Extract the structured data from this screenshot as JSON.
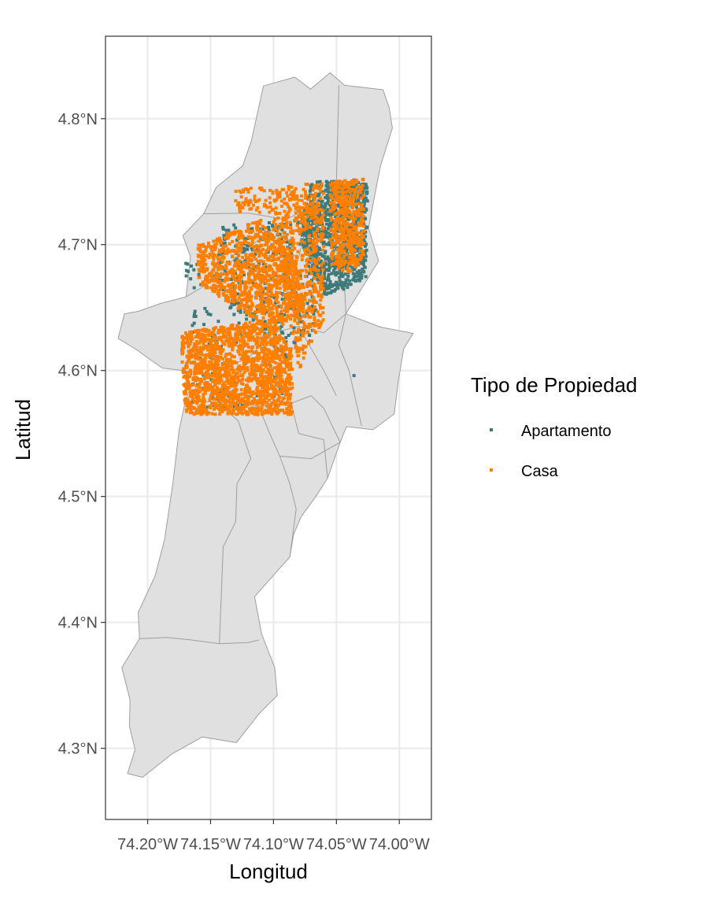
{
  "chart_data": {
    "type": "scatter",
    "title": "",
    "xlabel": "Longitud",
    "ylabel": "Latitud",
    "xlim": [
      -74.2335,
      -73.9745
    ],
    "ylim": [
      4.2435,
      4.8655
    ],
    "x_ticks": [
      {
        "value": -74.2,
        "label": "74.20°W"
      },
      {
        "value": -74.15,
        "label": "74.15°W"
      },
      {
        "value": -74.1,
        "label": "74.10°W"
      },
      {
        "value": -74.05,
        "label": "74.05°W"
      },
      {
        "value": -74.0,
        "label": "74.00°W"
      }
    ],
    "y_ticks": [
      {
        "value": 4.3,
        "label": "4.3°N"
      },
      {
        "value": 4.4,
        "label": "4.4°N"
      },
      {
        "value": 4.5,
        "label": "4.5°N"
      },
      {
        "value": 4.6,
        "label": "4.6°N"
      },
      {
        "value": 4.7,
        "label": "4.7°N"
      },
      {
        "value": 4.8,
        "label": "4.8°N"
      }
    ],
    "grid": true,
    "legend": {
      "title": "Tipo de Propiedad",
      "placement": "right",
      "entries": [
        {
          "name": "Apartamento",
          "color": "#3f7a7a"
        },
        {
          "name": "Casa",
          "color": "#ff7f00"
        }
      ]
    },
    "colors": {
      "land_fill": "#e0e0e0",
      "land_border": "#9e9e9e",
      "grid": "#ebebeb",
      "panel_border": "#333333"
    },
    "boundary": [
      [
        -74.1455,
        4.7455
      ],
      [
        -74.1245,
        4.7625
      ],
      [
        -74.1175,
        4.7825
      ],
      [
        -74.108,
        4.826
      ],
      [
        -74.083,
        4.833
      ],
      [
        -74.0705,
        4.8235
      ],
      [
        -74.055,
        4.8365
      ],
      [
        -74.0435,
        4.8265
      ],
      [
        -74.013,
        4.823
      ],
      [
        -74.008,
        4.8085
      ],
      [
        -74.0055,
        4.7925
      ],
      [
        -74.015,
        4.7625
      ],
      [
        -74.0195,
        4.7395
      ],
      [
        -74.0245,
        4.713
      ],
      [
        -74.0165,
        4.687
      ],
      [
        -74.0285,
        4.6675
      ],
      [
        -74.0425,
        4.645
      ],
      [
        -74.015,
        4.6345
      ],
      [
        -73.989,
        4.6295
      ],
      [
        -73.9965,
        4.6175
      ],
      [
        -74.001,
        4.59
      ],
      [
        -74.004,
        4.5655
      ],
      [
        -74.021,
        4.553
      ],
      [
        -74.042,
        4.5555
      ],
      [
        -74.047,
        4.543
      ],
      [
        -74.057,
        4.5145
      ],
      [
        -74.067,
        4.499
      ],
      [
        -74.078,
        4.484
      ],
      [
        -74.084,
        4.47
      ],
      [
        -74.087,
        4.452
      ],
      [
        -74.0995,
        4.438
      ],
      [
        -74.115,
        4.4205
      ],
      [
        -74.1095,
        4.391
      ],
      [
        -74.099,
        4.364
      ],
      [
        -74.097,
        4.342
      ],
      [
        -74.111,
        4.328
      ],
      [
        -74.1295,
        4.3045
      ],
      [
        -74.1565,
        4.309
      ],
      [
        -74.18,
        4.296
      ],
      [
        -74.204,
        4.277
      ],
      [
        -74.216,
        4.28
      ],
      [
        -74.21,
        4.299
      ],
      [
        -74.2145,
        4.3175
      ],
      [
        -74.214,
        4.3385
      ],
      [
        -74.2205,
        4.364
      ],
      [
        -74.2065,
        4.387
      ],
      [
        -74.2075,
        4.408
      ],
      [
        -74.194,
        4.437
      ],
      [
        -74.1865,
        4.466
      ],
      [
        -74.18,
        4.51
      ],
      [
        -74.175,
        4.5525
      ],
      [
        -74.17,
        4.576
      ],
      [
        -74.165,
        4.5895
      ],
      [
        -74.151,
        4.5975
      ],
      [
        -74.1885,
        4.602
      ],
      [
        -74.2095,
        4.617
      ],
      [
        -74.2235,
        4.6255
      ],
      [
        -74.2185,
        4.645
      ],
      [
        -74.2075,
        4.647
      ],
      [
        -74.189,
        4.6535
      ],
      [
        -74.1695,
        4.6585
      ],
      [
        -74.166,
        4.6905
      ],
      [
        -74.172,
        4.707
      ],
      [
        -74.1555,
        4.7245
      ],
      [
        -74.1455,
        4.7455
      ]
    ],
    "internal_lines": [
      [
        [
          -74.2065,
          4.387
        ],
        [
          -74.185,
          4.388
        ],
        [
          -74.165,
          4.386
        ],
        [
          -74.143,
          4.383
        ],
        [
          -74.12,
          4.384
        ],
        [
          -74.1115,
          4.386
        ]
      ],
      [
        [
          -74.172,
          4.576
        ],
        [
          -74.145,
          4.575
        ],
        [
          -74.128,
          4.56
        ],
        [
          -74.118,
          4.53
        ],
        [
          -74.129,
          4.51
        ],
        [
          -74.13,
          4.48
        ],
        [
          -74.14,
          4.46
        ],
        [
          -74.143,
          4.383
        ]
      ],
      [
        [
          -74.145,
          4.575
        ],
        [
          -74.112,
          4.572
        ],
        [
          -74.103,
          4.55
        ],
        [
          -74.095,
          4.532
        ],
        [
          -74.087,
          4.51
        ],
        [
          -74.082,
          4.49
        ],
        [
          -74.087,
          4.452
        ]
      ],
      [
        [
          -74.112,
          4.572
        ],
        [
          -74.086,
          4.574
        ],
        [
          -74.07,
          4.58
        ],
        [
          -74.06,
          4.57
        ],
        [
          -74.047,
          4.543
        ]
      ],
      [
        [
          -74.086,
          4.574
        ],
        [
          -74.08,
          4.55
        ],
        [
          -74.06,
          4.545
        ],
        [
          -74.057,
          4.5145
        ]
      ],
      [
        [
          -74.095,
          4.532
        ],
        [
          -74.07,
          4.53
        ],
        [
          -74.047,
          4.543
        ]
      ],
      [
        [
          -74.048,
          4.8265
        ],
        [
          -74.05,
          4.75
        ],
        [
          -74.045,
          4.7
        ],
        [
          -74.0425,
          4.645
        ]
      ],
      [
        [
          -74.03,
          4.556
        ],
        [
          -74.04,
          4.6
        ],
        [
          -74.048,
          4.62
        ],
        [
          -74.0425,
          4.645
        ]
      ],
      [
        [
          -74.15,
          4.5975
        ],
        [
          -74.12,
          4.61
        ],
        [
          -74.1,
          4.63
        ],
        [
          -74.08,
          4.635
        ],
        [
          -74.06,
          4.63
        ],
        [
          -74.0425,
          4.645
        ]
      ],
      [
        [
          -74.1695,
          4.6585
        ],
        [
          -74.15,
          4.67
        ],
        [
          -74.13,
          4.69
        ],
        [
          -74.11,
          4.705
        ],
        [
          -74.09,
          4.72
        ],
        [
          -74.07,
          4.73
        ],
        [
          -74.05,
          4.75
        ]
      ],
      [
        [
          -74.1555,
          4.7245
        ],
        [
          -74.12,
          4.725
        ],
        [
          -74.09,
          4.72
        ]
      ],
      [
        [
          -74.128,
          4.69
        ],
        [
          -74.12,
          4.65
        ],
        [
          -74.11,
          4.62
        ],
        [
          -74.1,
          4.6
        ],
        [
          -74.086,
          4.574
        ]
      ],
      [
        [
          -74.1,
          4.63
        ],
        [
          -74.09,
          4.66
        ],
        [
          -74.08,
          4.69
        ],
        [
          -74.07,
          4.73
        ]
      ],
      [
        [
          -74.08,
          4.635
        ],
        [
          -74.06,
          4.6
        ],
        [
          -74.05,
          4.58
        ]
      ],
      [
        [
          -74.12,
          4.61
        ],
        [
          -74.13,
          4.59
        ],
        [
          -74.145,
          4.575
        ]
      ]
    ],
    "series": [
      {
        "name": "Apartamento",
        "color": "#3f7a7a",
        "regions": [
          {
            "polygon": [
              [
                -74.07,
                4.75
              ],
              [
                -74.025,
                4.752
              ],
              [
                -74.026,
                4.675
              ],
              [
                -74.04,
                4.665
              ],
              [
                -74.06,
                4.66
              ],
              [
                -74.07,
                4.68
              ],
              [
                -74.08,
                4.71
              ]
            ],
            "count": 900
          },
          {
            "polygon": [
              [
                -74.14,
                4.715
              ],
              [
                -74.07,
                4.72
              ],
              [
                -74.065,
                4.65
              ],
              [
                -74.07,
                4.62
              ],
              [
                -74.09,
                4.61
              ],
              [
                -74.11,
                4.63
              ],
              [
                -74.135,
                4.65
              ],
              [
                -74.15,
                4.68
              ]
            ],
            "count": 350
          },
          {
            "polygon": [
              [
                -74.165,
                4.65
              ],
              [
                -74.11,
                4.65
              ],
              [
                -74.09,
                4.57
              ],
              [
                -74.165,
                4.57
              ]
            ],
            "count": 110
          },
          {
            "polygon": [
              [
                -74.17,
                4.69
              ],
              [
                -74.155,
                4.69
              ],
              [
                -74.155,
                4.665
              ],
              [
                -74.17,
                4.665
              ]
            ],
            "count": 14
          }
        ],
        "points": [
          [
            -74.036,
            4.596
          ]
        ]
      },
      {
        "name": "Casa",
        "color": "#ff7f00",
        "regions": [
          {
            "polygon": [
              [
                -74.174,
                4.63
              ],
              [
                -74.11,
                4.64
              ],
              [
                -74.085,
                4.62
              ],
              [
                -74.085,
                4.565
              ],
              [
                -74.17,
                4.565
              ]
            ],
            "count": 1600
          },
          {
            "polygon": [
              [
                -74.16,
                4.7
              ],
              [
                -74.11,
                4.72
              ],
              [
                -74.085,
                4.69
              ],
              [
                -74.075,
                4.65
              ],
              [
                -74.1,
                4.63
              ],
              [
                -74.13,
                4.65
              ],
              [
                -74.16,
                4.67
              ]
            ],
            "count": 1000
          },
          {
            "polygon": [
              [
                -74.1,
                4.745
              ],
              [
                -74.06,
                4.75
              ],
              [
                -74.06,
                4.64
              ],
              [
                -74.08,
                4.6
              ],
              [
                -74.09,
                4.65
              ],
              [
                -74.1,
                4.7
              ]
            ],
            "count": 600
          },
          {
            "polygon": [
              [
                -74.055,
                4.75
              ],
              [
                -74.028,
                4.752
              ],
              [
                -74.028,
                4.69
              ],
              [
                -74.04,
                4.675
              ],
              [
                -74.055,
                4.685
              ]
            ],
            "count": 450
          },
          {
            "polygon": [
              [
                -74.13,
                4.745
              ],
              [
                -74.1,
                4.745
              ],
              [
                -74.1,
                4.725
              ],
              [
                -74.13,
                4.725
              ]
            ],
            "count": 60
          }
        ],
        "points": []
      }
    ]
  }
}
